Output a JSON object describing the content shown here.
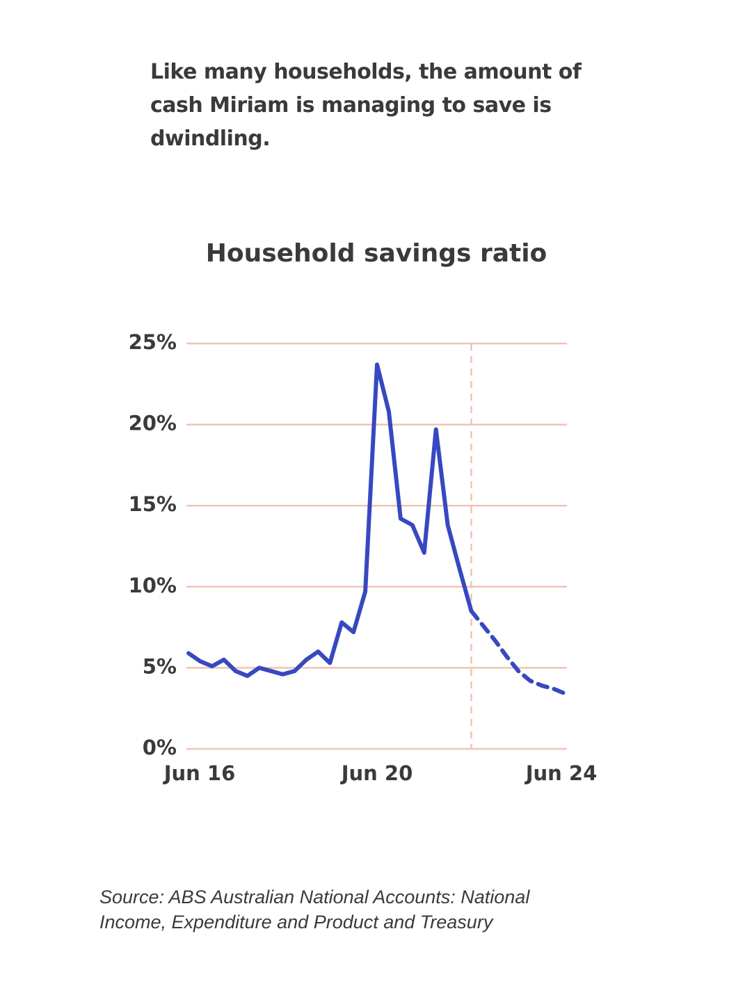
{
  "intro": "Like many households, the amount of cash Miriam is managing to save is dwindling.",
  "chart_data": {
    "type": "line",
    "title": "Household savings ratio",
    "categories": [
      "Jun 16",
      null,
      null,
      null,
      null,
      null,
      null,
      null,
      null,
      null,
      null,
      null,
      null,
      null,
      null,
      null,
      "Jun 20",
      null,
      null,
      null,
      null,
      null,
      null,
      null,
      null,
      null,
      null,
      null,
      null,
      null,
      null,
      null,
      "Jun 24"
    ],
    "series": [
      {
        "color": "#3748c0",
        "style": "solid",
        "values": [
          5.9,
          5.4,
          5.1,
          5.5,
          4.8,
          4.5,
          5.0,
          4.8,
          4.6,
          4.8,
          5.5,
          6.0,
          5.3,
          7.8,
          7.2,
          9.7,
          23.7,
          20.8,
          14.2,
          13.8,
          12.1,
          19.7,
          13.8,
          11.1,
          8.5,
          null,
          null,
          null,
          null,
          null,
          null,
          null,
          null
        ]
      },
      {
        "color": "#3748c0",
        "style": "dashed",
        "values": [
          null,
          null,
          null,
          null,
          null,
          null,
          null,
          null,
          null,
          null,
          null,
          null,
          null,
          null,
          null,
          null,
          null,
          null,
          null,
          null,
          null,
          null,
          null,
          null,
          8.5,
          7.6,
          6.7,
          5.7,
          4.8,
          4.2,
          3.9,
          3.7,
          3.4
        ]
      }
    ],
    "ylim": [
      0,
      25
    ],
    "yticks": [
      {
        "value": 0,
        "label": "0%"
      },
      {
        "value": 5,
        "label": "5%"
      },
      {
        "value": 10,
        "label": "10%"
      },
      {
        "value": 15,
        "label": "15%"
      },
      {
        "value": 20,
        "label": "20%"
      },
      {
        "value": 25,
        "label": "25%"
      }
    ],
    "grid": true,
    "grid_color": "#f0c4b0"
  },
  "source": "Source: ABS Australian National Accounts: National Income, Expenditure and Product and Treasury"
}
